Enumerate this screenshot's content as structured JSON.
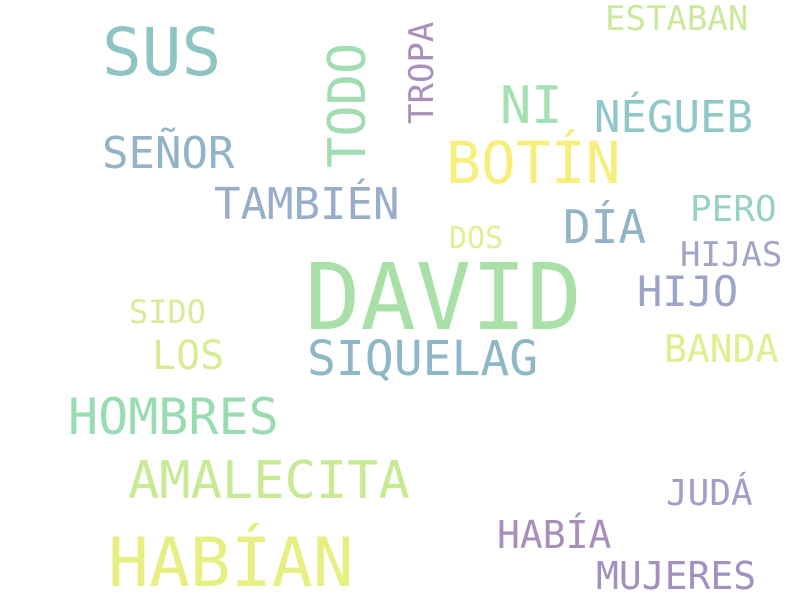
{
  "words": {
    "david": "DAVID",
    "habian": "HABÍAN",
    "sus": "SUS",
    "botin": "BOTÍN",
    "todo": "TODO",
    "amalecita": "AMALECITA",
    "siquelag": "SIQUELAG",
    "hombres": "HOMBRES",
    "ni": "NI",
    "negueb": "NÉGUEB",
    "senor": "SEÑOR",
    "tambien": "TAMBIÉN",
    "dia": "DÍA",
    "hijo": "HIJO",
    "los": "LOS",
    "banda": "BANDA",
    "habia": "HABÍA",
    "mujeres": "MUJERES",
    "juda": "JUDÁ",
    "estaban": "ESTABAN",
    "tropa": "TROPA",
    "pero": "PERO",
    "hijas": "HIJAS",
    "dos": "DOS",
    "sido": "SIDO"
  },
  "colors": {
    "david": "#a8e0a8",
    "habian": "#e8ef82",
    "sus": "#8ec4c4",
    "botin": "#f7ef7c",
    "todo": "#a2dcb2",
    "amalecita": "#c9ea94",
    "siquelag": "#8eb8c6",
    "hombres": "#9adcb2",
    "ni": "#a4e0b4",
    "negueb": "#8ec8c8",
    "senor": "#92b4c6",
    "tambien": "#98aec8",
    "dia": "#92b4c6",
    "hijo": "#9ea4c8",
    "los": "#d8ec96",
    "banda": "#e0ee8e",
    "habia": "#aa8eba",
    "mujeres": "#a290c0",
    "juda": "#a29ec6",
    "estaban": "#cce89c",
    "tropa": "#a890ba",
    "pero": "#98d2c4",
    "hijas": "#a2a4c8",
    "dos": "#e4ee92",
    "sido": "#d8ec9a"
  }
}
